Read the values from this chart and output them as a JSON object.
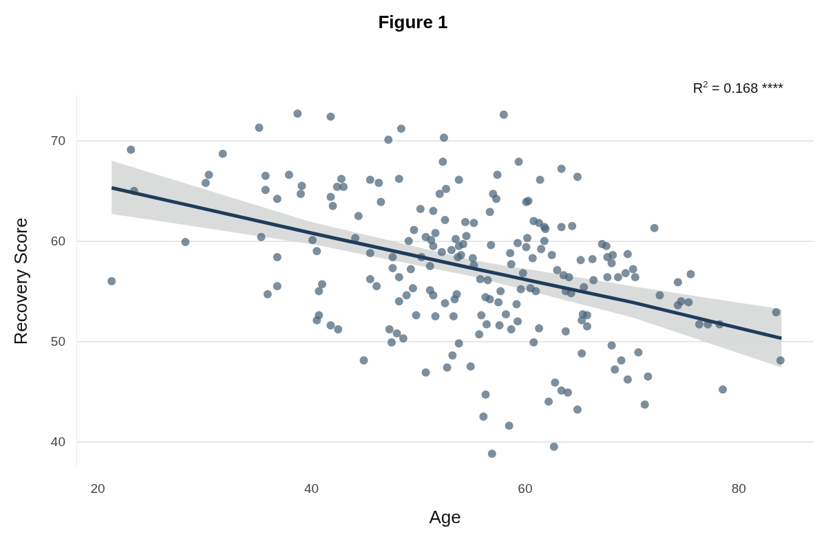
{
  "chart_data": {
    "type": "scatter",
    "title": "Figure 1",
    "xlabel": "Age",
    "ylabel": "Recovery Score",
    "annotations": [
      "R$^{2}$ = 0.168 ****"
    ],
    "xlim": [
      18,
      87
    ],
    "xticks": [
      20,
      40,
      60,
      80
    ],
    "ylim": [
      37.5,
      74.5
    ],
    "yticks": [
      40,
      50,
      60,
      70
    ],
    "grid": "y",
    "series": [
      {
        "marker": "circle",
        "color": "#4a6478",
        "x": [
          21.3,
          23.1,
          23.4,
          28.2,
          30.1,
          30.4,
          31.7,
          35.1,
          35.3,
          36.8,
          36.8,
          36.8,
          35.7,
          35.7,
          35.9,
          37.9,
          38.7,
          39.1,
          39.0,
          40.1,
          40.5,
          40.7,
          40.7,
          40.5,
          41.0,
          41.8,
          41.8,
          42.0,
          41.8,
          42.4,
          42.5,
          42.8,
          43.0,
          44.1,
          44.4,
          44.9,
          45.5,
          45.5,
          45.5,
          46.1,
          46.3,
          46.5,
          47.2,
          47.3,
          47.6,
          47.6,
          47.5,
          48.0,
          48.2,
          48.2,
          48.2,
          48.4,
          48.6,
          48.9,
          49.1,
          49.3,
          49.5,
          49.6,
          49.8,
          50.2,
          50.3,
          50.7,
          50.7,
          51.1,
          51.1,
          51.2,
          51.4,
          51.4,
          51.4,
          51.6,
          51.6,
          52.0,
          52.2,
          52.3,
          52.4,
          52.5,
          52.5,
          52.6,
          52.7,
          53.1,
          53.2,
          53.3,
          53.4,
          53.5,
          53.6,
          53.7,
          53.8,
          53.8,
          53.8,
          54.0,
          54.2,
          54.4,
          54.5,
          54.9,
          55.1,
          55.2,
          55.2,
          55.7,
          55.8,
          55.9,
          56.1,
          56.3,
          56.3,
          56.4,
          56.5,
          56.7,
          56.8,
          56.9,
          56.7,
          57.0,
          57.3,
          57.4,
          57.5,
          57.6,
          57.7,
          58.0,
          58.2,
          58.5,
          58.6,
          58.7,
          58.7,
          59.2,
          59.3,
          59.3,
          59.4,
          59.6,
          59.8,
          60.1,
          60.1,
          60.2,
          60.3,
          60.5,
          60.7,
          60.8,
          60.8,
          61.0,
          61.3,
          61.3,
          61.4,
          61.5,
          61.8,
          61.8,
          61.9,
          62.2,
          62.5,
          62.8,
          62.7,
          63.0,
          63.4,
          63.4,
          63.4,
          63.6,
          63.8,
          63.8,
          64.0,
          64.1,
          64.3,
          64.4,
          64.9,
          64.9,
          65.2,
          65.3,
          65.3,
          65.4,
          65.5,
          65.8,
          65.8,
          66.3,
          66.4,
          67.2,
          67.6,
          67.7,
          67.7,
          68.1,
          68.2,
          68.1,
          68.4,
          68.7,
          69.0,
          69.4,
          69.6,
          69.6,
          70.1,
          70.3,
          70.6,
          71.2,
          71.5,
          72.1,
          72.6,
          74.3,
          74.3,
          74.6,
          75.3,
          75.5,
          76.3,
          77.1,
          78.2,
          78.5,
          83.5,
          83.9
        ],
        "values": [
          56.0,
          69.1,
          65.0,
          59.9,
          65.8,
          66.6,
          68.7,
          71.3,
          60.4,
          64.2,
          58.4,
          55.5,
          66.5,
          65.1,
          54.7,
          66.6,
          72.7,
          65.5,
          64.7,
          60.1,
          59.0,
          55.0,
          52.6,
          52.1,
          55.7,
          72.4,
          64.4,
          63.5,
          51.6,
          65.4,
          51.2,
          66.2,
          65.4,
          60.3,
          62.5,
          48.1,
          66.1,
          58.8,
          56.2,
          55.5,
          65.8,
          63.9,
          70.1,
          51.2,
          58.4,
          57.3,
          49.9,
          50.8,
          66.2,
          56.4,
          54.0,
          71.2,
          50.3,
          54.6,
          60.0,
          57.2,
          55.3,
          61.1,
          52.6,
          63.2,
          58.4,
          60.4,
          46.9,
          57.5,
          55.1,
          60.1,
          63.0,
          59.5,
          54.6,
          60.8,
          52.5,
          64.7,
          58.9,
          67.9,
          70.3,
          62.1,
          53.8,
          65.2,
          47.4,
          59.1,
          48.6,
          52.5,
          54.2,
          60.2,
          54.7,
          58.4,
          59.5,
          66.1,
          49.8,
          58.6,
          59.7,
          61.9,
          60.5,
          47.5,
          58.3,
          57.6,
          61.8,
          50.7,
          56.2,
          52.6,
          42.5,
          44.7,
          54.4,
          51.7,
          56.1,
          62.9,
          59.6,
          38.8,
          54.2,
          64.7,
          64.2,
          66.6,
          53.9,
          51.6,
          55.0,
          72.6,
          52.7,
          41.6,
          58.8,
          57.7,
          51.2,
          53.7,
          59.8,
          52.0,
          67.9,
          55.2,
          56.8,
          63.9,
          59.4,
          60.3,
          64.0,
          55.3,
          58.3,
          49.9,
          62.0,
          55.0,
          61.8,
          51.3,
          66.1,
          59.2,
          60.0,
          61.4,
          61.2,
          44.0,
          58.6,
          45.9,
          39.5,
          57.1,
          45.1,
          61.4,
          67.2,
          56.6,
          51.0,
          55.0,
          44.9,
          56.4,
          54.8,
          61.5,
          43.2,
          66.4,
          58.1,
          52.1,
          48.8,
          52.7,
          55.4,
          52.6,
          51.5,
          58.2,
          56.1,
          59.7,
          59.5,
          58.4,
          56.4,
          57.8,
          58.6,
          49.6,
          47.2,
          56.4,
          48.1,
          56.8,
          58.7,
          46.2,
          57.2,
          56.4,
          48.9,
          43.7,
          46.5,
          61.3,
          54.6,
          53.6,
          55.9,
          54.0,
          53.9,
          56.7,
          51.7,
          51.7,
          51.7,
          45.2,
          52.9,
          48.1
        ]
      },
      {
        "type": "line",
        "marker": "none",
        "color": "#1f3d5a",
        "x": [
          21.3,
          40,
          55,
          70,
          84.0
        ],
        "values": [
          65.3,
          60.8,
          57.3,
          53.9,
          50.3
        ],
        "lower": [
          62.7,
          59.7,
          56.5,
          52.4,
          47.4
        ],
        "upper": [
          68.0,
          61.9,
          58.1,
          55.5,
          53.2
        ]
      }
    ]
  }
}
